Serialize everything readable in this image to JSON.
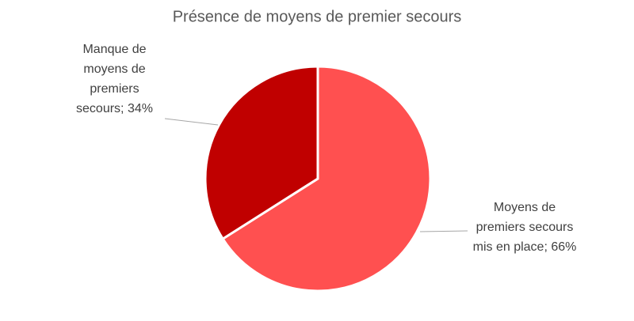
{
  "chart_data": {
    "type": "pie",
    "title": "Présence de moyens de premier secours",
    "categories": [
      "Moyens de premiers secours mis en place",
      "Manque de moyens de premiers secours"
    ],
    "values": [
      66,
      34
    ],
    "value_labels": [
      "66%",
      "34%"
    ],
    "label_separator": "; ",
    "colors": [
      "#ff5050",
      "#c00000"
    ]
  }
}
